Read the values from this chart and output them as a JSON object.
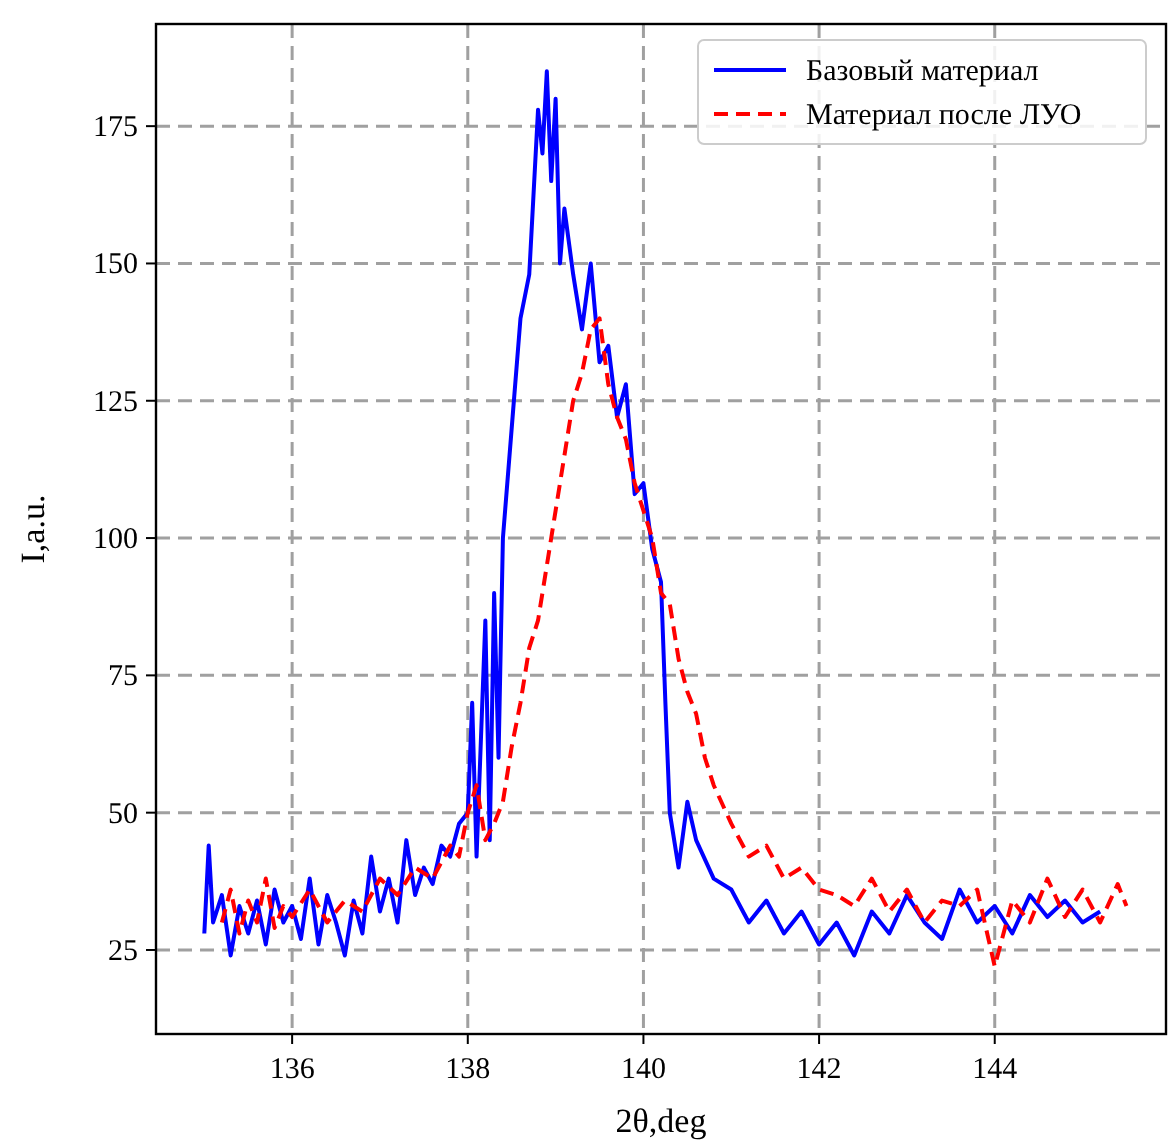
{
  "chart_data": {
    "type": "line",
    "xlabel": "2θ,deg",
    "ylabel": "I,a.u.",
    "xlim": [
      134.45,
      145.95
    ],
    "ylim": [
      9.7,
      193.6
    ],
    "xticks": [
      136,
      138,
      140,
      142,
      144
    ],
    "yticks": [
      25,
      50,
      75,
      100,
      125,
      150,
      175
    ],
    "grid": true,
    "legend": "top right",
    "series": [
      {
        "name": "Базовый материал",
        "color": "#0000ff",
        "line_style": "solid",
        "x": [
          135.0,
          135.05,
          135.1,
          135.2,
          135.3,
          135.4,
          135.5,
          135.6,
          135.7,
          135.8,
          135.9,
          136.0,
          136.1,
          136.2,
          136.3,
          136.4,
          136.5,
          136.6,
          136.7,
          136.8,
          136.9,
          137.0,
          137.1,
          137.2,
          137.3,
          137.4,
          137.5,
          137.6,
          137.7,
          137.8,
          137.9,
          138.0,
          138.05,
          138.1,
          138.2,
          138.25,
          138.3,
          138.35,
          138.4,
          138.5,
          138.6,
          138.7,
          138.8,
          138.85,
          138.9,
          138.95,
          139.0,
          139.05,
          139.1,
          139.2,
          139.3,
          139.4,
          139.5,
          139.6,
          139.7,
          139.8,
          139.9,
          140.0,
          140.1,
          140.2,
          140.25,
          140.3,
          140.4,
          140.5,
          140.6,
          140.8,
          141.0,
          141.2,
          141.4,
          141.6,
          141.8,
          142.0,
          142.2,
          142.4,
          142.6,
          142.8,
          143.0,
          143.2,
          143.4,
          143.6,
          143.8,
          144.0,
          144.2,
          144.4,
          144.6,
          144.8,
          145.0,
          145.2
        ],
        "values": [
          28,
          44,
          30,
          35,
          24,
          33,
          28,
          34,
          26,
          36,
          30,
          33,
          27,
          38,
          26,
          35,
          30,
          24,
          34,
          28,
          42,
          32,
          38,
          30,
          45,
          35,
          40,
          37,
          44,
          42,
          48,
          50,
          70,
          42,
          85,
          45,
          90,
          60,
          100,
          120,
          140,
          148,
          178,
          170,
          185,
          165,
          180,
          150,
          160,
          148,
          138,
          150,
          132,
          135,
          122,
          128,
          108,
          110,
          98,
          92,
          70,
          50,
          40,
          52,
          45,
          38,
          36,
          30,
          34,
          28,
          32,
          26,
          30,
          24,
          32,
          28,
          35,
          30,
          27,
          36,
          30,
          33,
          28,
          35,
          31,
          34,
          30,
          32
        ]
      },
      {
        "name": "Материал после ЛУО",
        "color": "#ff0000",
        "line_style": "dashed",
        "x": [
          135.2,
          135.3,
          135.4,
          135.5,
          135.6,
          135.7,
          135.8,
          135.9,
          136.0,
          136.2,
          136.4,
          136.6,
          136.8,
          137.0,
          137.2,
          137.4,
          137.6,
          137.8,
          137.9,
          138.0,
          138.1,
          138.2,
          138.3,
          138.4,
          138.5,
          138.6,
          138.7,
          138.8,
          138.9,
          139.0,
          139.1,
          139.2,
          139.3,
          139.4,
          139.5,
          139.6,
          139.7,
          139.8,
          139.9,
          140.0,
          140.1,
          140.2,
          140.3,
          140.4,
          140.5,
          140.6,
          140.7,
          140.8,
          141.0,
          141.2,
          141.4,
          141.6,
          141.8,
          142.0,
          142.2,
          142.4,
          142.6,
          142.8,
          143.0,
          143.2,
          143.4,
          143.6,
          143.8,
          144.0,
          144.2,
          144.4,
          144.6,
          144.8,
          145.0,
          145.2,
          145.4,
          145.5
        ],
        "values": [
          30,
          36,
          28,
          34,
          30,
          38,
          29,
          33,
          31,
          36,
          30,
          34,
          32,
          38,
          35,
          40,
          38,
          44,
          42,
          50,
          55,
          45,
          48,
          52,
          62,
          70,
          80,
          85,
          95,
          105,
          115,
          125,
          130,
          138,
          140,
          128,
          122,
          118,
          110,
          105,
          100,
          90,
          88,
          78,
          72,
          68,
          60,
          55,
          48,
          42,
          44,
          38,
          40,
          36,
          35,
          33,
          38,
          32,
          36,
          30,
          34,
          33,
          36,
          22,
          34,
          30,
          38,
          31,
          36,
          30,
          37,
          33
        ]
      }
    ]
  }
}
